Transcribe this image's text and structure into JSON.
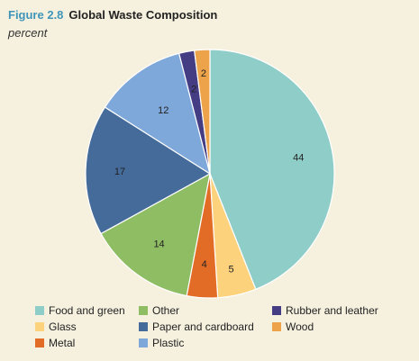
{
  "figure": {
    "number": "Figure 2.8",
    "title": "Global Waste Composition",
    "subtitle": "percent"
  },
  "chart_data": {
    "type": "pie",
    "title": "Global Waste Composition",
    "unit": "percent",
    "start": "12 o'clock",
    "direction": "clockwise",
    "slices": [
      {
        "label": "Food and green",
        "value": 44,
        "value_label": "44",
        "color": "#8fcdc9"
      },
      {
        "label": "Glass",
        "value": 5,
        "value_label": "5",
        "color": "#fcd27c"
      },
      {
        "label": "Metal",
        "value": 4,
        "value_label": "4",
        "color": "#e26c26"
      },
      {
        "label": "Other",
        "value": 14,
        "value_label": "14",
        "color": "#8fbd63"
      },
      {
        "label": "Paper and cardboard",
        "value": 17,
        "value_label": "17",
        "color": "#446b9a"
      },
      {
        "label": "Plastic",
        "value": 12,
        "value_label": "12",
        "color": "#7ea7da"
      },
      {
        "label": "Rubber and leather",
        "value": 2,
        "value_label": "2",
        "color": "#443d84"
      },
      {
        "label": "Wood",
        "value": 2,
        "value_label": "2",
        "color": "#eca34a"
      }
    ],
    "legend": {
      "placement": "bottom",
      "columns": [
        [
          "Food and green",
          "Glass",
          "Metal"
        ],
        [
          "Other",
          "Paper and cardboard",
          "Plastic"
        ],
        [
          "Rubber and leather",
          "Wood"
        ]
      ]
    }
  }
}
